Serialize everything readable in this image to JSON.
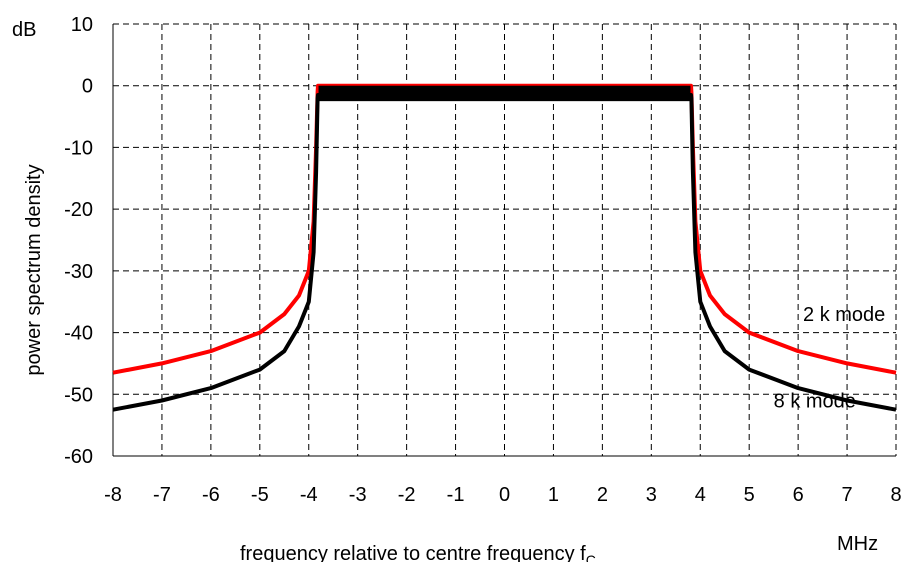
{
  "chart_data": {
    "type": "line",
    "title": "",
    "xlabel": "frequency relative to centre frequency f",
    "xlabel_subscript": "C",
    "ylabel": "power spectrum density",
    "x_unit": "MHz",
    "y_unit": "dB",
    "xlim": [
      -8,
      8
    ],
    "ylim": [
      -60,
      10
    ],
    "x_ticks": [
      -8,
      -7,
      -6,
      -5,
      -4,
      -3,
      -2,
      -1,
      0,
      1,
      2,
      3,
      4,
      5,
      6,
      7,
      8
    ],
    "y_ticks": [
      10,
      0,
      -10,
      -20,
      -30,
      -40,
      -50,
      -60
    ],
    "grid": true,
    "grid_style": "dashed",
    "series": [
      {
        "name": "2 k mode",
        "color": "#ff0000",
        "x": [
          -8,
          -7,
          -6,
          -5,
          -4.5,
          -4.2,
          -4.0,
          -3.9,
          -3.85,
          -3.82,
          -3.81,
          3.81,
          3.82,
          3.85,
          3.9,
          4.0,
          4.2,
          4.5,
          5,
          6,
          7,
          8
        ],
        "y": [
          -46.5,
          -45,
          -43,
          -40,
          -37,
          -34,
          -30,
          -22,
          -10,
          -1,
          0,
          0,
          -1,
          -10,
          -22,
          -30,
          -34,
          -37,
          -40,
          -43,
          -45,
          -46.5
        ]
      },
      {
        "name": "8 k mode",
        "color": "#000000",
        "x": [
          -8,
          -7,
          -6,
          -5,
          -4.5,
          -4.2,
          -4.0,
          -3.9,
          -3.85,
          -3.82,
          -3.81,
          3.81,
          3.82,
          3.85,
          3.9,
          4.0,
          4.2,
          4.5,
          5,
          6,
          7,
          8
        ],
        "y": [
          -52.5,
          -51,
          -49,
          -46,
          -43,
          -39,
          -35,
          -27,
          -14,
          -2,
          -1.5,
          -1.5,
          -2,
          -14,
          -27,
          -35,
          -39,
          -43,
          -46,
          -49,
          -51,
          -52.5
        ]
      }
    ],
    "annotations": [
      {
        "text": "2 k mode",
        "x": 6.1,
        "y": -37
      },
      {
        "text": "8 k mode",
        "x": 5.5,
        "y": -51
      }
    ],
    "passband": {
      "x": [
        -3.8,
        3.8
      ],
      "y_top": 0,
      "y_bottom": -2.5,
      "color": "#000000"
    }
  }
}
